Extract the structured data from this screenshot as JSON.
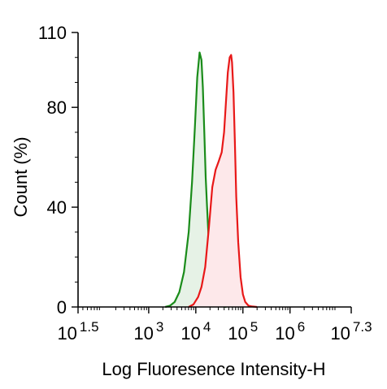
{
  "chart_data": {
    "type": "area",
    "title": "",
    "xlabel": "Log Fluoresence Intensity-H",
    "ylabel": "Count  (%)",
    "x_scale": "log",
    "xlim": [
      1.5,
      7.3
    ],
    "ylim": [
      0,
      110
    ],
    "grid": false,
    "x_ticks": [
      {
        "base": "10",
        "exp": "1.5",
        "value": 1.5
      },
      {
        "base": "10",
        "exp": "3",
        "value": 3
      },
      {
        "base": "10",
        "exp": "4",
        "value": 4
      },
      {
        "base": "10",
        "exp": "5",
        "value": 5
      },
      {
        "base": "10",
        "exp": "6",
        "value": 6
      },
      {
        "base": "10",
        "exp": "7.3",
        "value": 7.3
      }
    ],
    "y_ticks": [
      {
        "label": "0",
        "value": 0
      },
      {
        "label": "40",
        "value": 40
      },
      {
        "label": "80",
        "value": 80
      },
      {
        "label": "110",
        "value": 110
      }
    ],
    "series": [
      {
        "color": "#1a8c1a",
        "fill": "#e6f2e6",
        "x": [
          3.35,
          3.45,
          3.55,
          3.65,
          3.75,
          3.85,
          3.92,
          3.98,
          4.03,
          4.08,
          4.12,
          4.15,
          4.18,
          4.21,
          4.24,
          4.27,
          4.3,
          4.34,
          4.38,
          4.42,
          4.46,
          4.5,
          4.55,
          4.6,
          4.65
        ],
        "y": [
          0,
          0.5,
          2,
          6,
          14,
          30,
          50,
          72,
          92,
          102,
          99,
          88,
          70,
          52,
          40,
          28,
          18,
          10,
          6,
          3,
          1.5,
          0.8,
          0.3,
          0.1,
          0
        ]
      },
      {
        "color": "#e81818",
        "fill": "#fde8ea",
        "x": [
          3.85,
          3.95,
          4.05,
          4.12,
          4.2,
          4.28,
          4.35,
          4.42,
          4.48,
          4.55,
          4.6,
          4.64,
          4.68,
          4.72,
          4.75,
          4.77,
          4.8,
          4.83,
          4.86,
          4.9,
          4.95,
          5.0,
          5.05,
          5.12,
          5.2,
          5.3
        ],
        "y": [
          0,
          1,
          4,
          8,
          16,
          32,
          48,
          55,
          58,
          62,
          70,
          82,
          94,
          100,
          101,
          98,
          86,
          66,
          44,
          26,
          12,
          5,
          2,
          0.5,
          0.2,
          0
        ]
      }
    ]
  }
}
